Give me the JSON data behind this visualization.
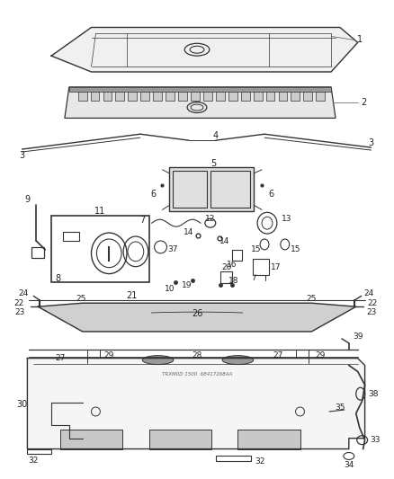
{
  "bg_color": "#ffffff",
  "line_color": "#333333",
  "text_color": "#222222",
  "fig_width": 4.38,
  "fig_height": 5.33,
  "dpi": 100
}
